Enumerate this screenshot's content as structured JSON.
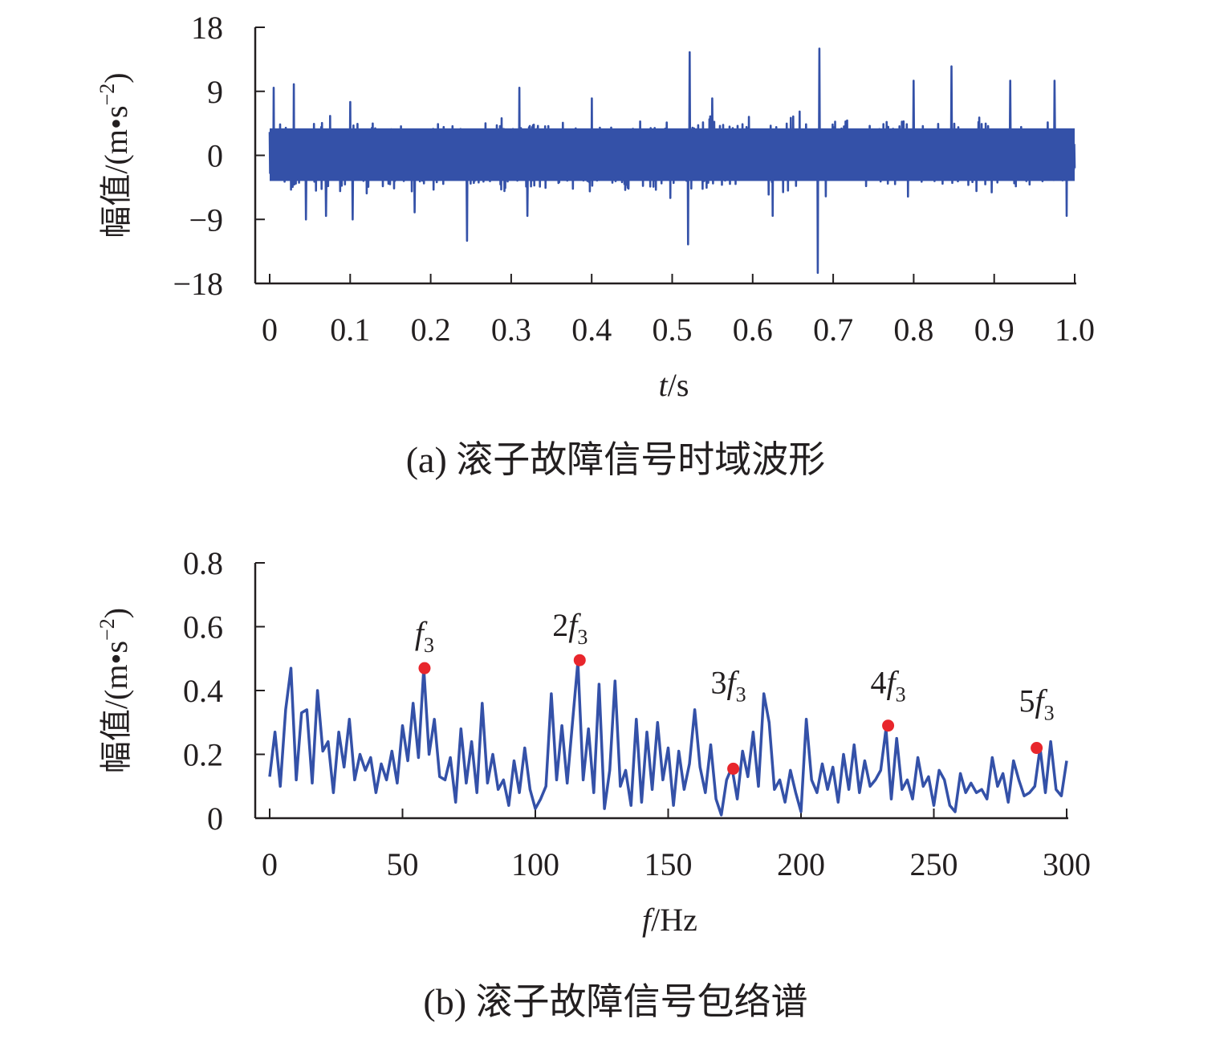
{
  "chart_data": [
    {
      "type": "line",
      "caption": "(a) 滚子故障信号时域波形",
      "xlabel_var": "t",
      "xlabel_unit": "/s",
      "ylabel": "幅值/(m•s",
      "ylabel_exp": "−2",
      "ylabel_close": ")",
      "xlim": [
        0,
        1.0
      ],
      "ylim": [
        -18,
        18
      ],
      "xticks": [
        "0",
        "0.1",
        "0.2",
        "0.3",
        "0.4",
        "0.5",
        "0.6",
        "0.7",
        "0.8",
        "0.9",
        "1.0"
      ],
      "yticks": [
        "18",
        "9",
        "0",
        "−9",
        "−18"
      ],
      "color": "#3451a8",
      "signal": {
        "description_free": true,
        "sample_count": 2000,
        "typical_envelope": [
          -6.5,
          6.5
        ],
        "peaks": [
          {
            "x": 0.005,
            "y": 9.5
          },
          {
            "x": 0.03,
            "y": 10.0
          },
          {
            "x": 0.045,
            "y": -9.0
          },
          {
            "x": 0.07,
            "y": -8.5
          },
          {
            "x": 0.1,
            "y": 7.5
          },
          {
            "x": 0.103,
            "y": -9.0
          },
          {
            "x": 0.18,
            "y": -8.0
          },
          {
            "x": 0.245,
            "y": -12.0
          },
          {
            "x": 0.31,
            "y": 9.5
          },
          {
            "x": 0.32,
            "y": -8.5
          },
          {
            "x": 0.4,
            "y": 8.0
          },
          {
            "x": 0.522,
            "y": 14.5
          },
          {
            "x": 0.52,
            "y": -12.5
          },
          {
            "x": 0.55,
            "y": 8.0
          },
          {
            "x": 0.625,
            "y": -8.5
          },
          {
            "x": 0.683,
            "y": 15.0
          },
          {
            "x": 0.681,
            "y": -16.5
          },
          {
            "x": 0.8,
            "y": 10.5
          },
          {
            "x": 0.847,
            "y": 12.5
          },
          {
            "x": 0.92,
            "y": 10.5
          },
          {
            "x": 0.975,
            "y": 10.5
          },
          {
            "x": 0.99,
            "y": -8.5
          }
        ]
      }
    },
    {
      "type": "line",
      "caption": "(b) 滚子故障信号包络谱",
      "xlabel_var": "f",
      "xlabel_unit": "/Hz",
      "ylabel": "幅值/(m•s",
      "ylabel_exp": "−2",
      "ylabel_close": ")",
      "xlim": [
        0,
        300
      ],
      "ylim": [
        0,
        0.8
      ],
      "xticks": [
        "0",
        "50",
        "100",
        "150",
        "200",
        "250",
        "300"
      ],
      "yticks": [
        "0.8",
        "0.6",
        "0.4",
        "0.2",
        "0"
      ],
      "color": "#3451a8",
      "x": [
        0,
        2,
        4,
        6,
        8,
        10,
        12,
        14,
        16,
        18,
        20,
        22,
        24,
        26,
        28,
        30,
        32,
        34,
        36,
        38,
        40,
        42,
        44,
        46,
        48,
        50,
        52,
        54,
        56,
        58,
        60,
        62,
        64,
        66,
        68,
        70,
        72,
        74,
        76,
        78,
        80,
        82,
        84,
        86,
        88,
        90,
        92,
        94,
        96,
        98,
        100,
        102,
        104,
        106,
        108,
        110,
        112,
        114,
        116,
        118,
        120,
        122,
        124,
        126,
        128,
        130,
        132,
        134,
        136,
        138,
        140,
        142,
        144,
        146,
        148,
        150,
        152,
        154,
        156,
        158,
        160,
        162,
        164,
        166,
        168,
        170,
        172,
        174,
        176,
        178,
        180,
        182,
        184,
        186,
        188,
        190,
        192,
        194,
        196,
        198,
        200,
        202,
        204,
        206,
        208,
        210,
        212,
        214,
        216,
        218,
        220,
        222,
        224,
        226,
        228,
        230,
        232,
        234,
        236,
        238,
        240,
        242,
        244,
        246,
        248,
        250,
        252,
        254,
        256,
        258,
        260,
        262,
        264,
        266,
        268,
        270,
        272,
        274,
        276,
        278,
        280,
        282,
        284,
        286,
        288,
        290,
        292,
        294,
        296,
        298,
        300
      ],
      "y": [
        0.13,
        0.27,
        0.1,
        0.34,
        0.47,
        0.12,
        0.33,
        0.34,
        0.11,
        0.4,
        0.21,
        0.24,
        0.08,
        0.27,
        0.16,
        0.31,
        0.12,
        0.2,
        0.15,
        0.19,
        0.08,
        0.17,
        0.12,
        0.21,
        0.11,
        0.29,
        0.18,
        0.36,
        0.19,
        0.47,
        0.2,
        0.31,
        0.13,
        0.12,
        0.19,
        0.05,
        0.28,
        0.11,
        0.24,
        0.08,
        0.36,
        0.11,
        0.2,
        0.09,
        0.12,
        0.04,
        0.18,
        0.08,
        0.22,
        0.09,
        0.03,
        0.06,
        0.1,
        0.39,
        0.12,
        0.29,
        0.11,
        0.3,
        0.49,
        0.12,
        0.28,
        0.08,
        0.42,
        0.03,
        0.15,
        0.43,
        0.1,
        0.15,
        0.04,
        0.31,
        0.05,
        0.27,
        0.09,
        0.3,
        0.12,
        0.22,
        0.04,
        0.21,
        0.09,
        0.17,
        0.34,
        0.16,
        0.08,
        0.23,
        0.06,
        0.01,
        0.12,
        0.16,
        0.06,
        0.21,
        0.13,
        0.27,
        0.1,
        0.39,
        0.3,
        0.09,
        0.12,
        0.05,
        0.15,
        0.08,
        0.02,
        0.31,
        0.12,
        0.08,
        0.17,
        0.09,
        0.16,
        0.05,
        0.2,
        0.09,
        0.23,
        0.08,
        0.18,
        0.1,
        0.12,
        0.15,
        0.28,
        0.06,
        0.25,
        0.09,
        0.12,
        0.06,
        0.19,
        0.1,
        0.13,
        0.04,
        0.15,
        0.12,
        0.04,
        0.02,
        0.14,
        0.08,
        0.11,
        0.08,
        0.09,
        0.06,
        0.19,
        0.1,
        0.14,
        0.05,
        0.18,
        0.12,
        0.07,
        0.08,
        0.1,
        0.22,
        0.08,
        0.24,
        0.09,
        0.07,
        0.18
      ],
      "markers": [
        {
          "x": 58.3,
          "y": 0.47,
          "label_pre": "",
          "label_var": "f",
          "label_sub": "3"
        },
        {
          "x": 116.7,
          "y": 0.495,
          "label_pre": "2",
          "label_var": "f",
          "label_sub": "3"
        },
        {
          "x": 174.5,
          "y": 0.155,
          "label_pre": "3",
          "label_var": "f",
          "label_sub": "3"
        },
        {
          "x": 232.8,
          "y": 0.29,
          "label_pre": "4",
          "label_var": "f",
          "label_sub": "3"
        },
        {
          "x": 288.7,
          "y": 0.22,
          "label_pre": "5",
          "label_var": "f",
          "label_sub": "3"
        }
      ],
      "marker_color": "#e8262c"
    }
  ]
}
